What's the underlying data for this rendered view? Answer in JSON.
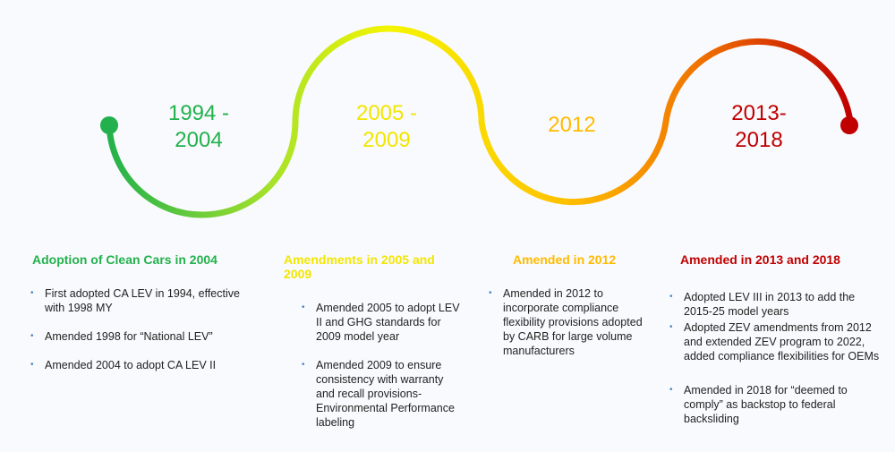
{
  "colors": {
    "green": "#22b14c",
    "yellow": "#f2e600",
    "orange": "#ffbb00",
    "red": "#c00000",
    "bullet": "#4a86c8"
  },
  "periods": [
    {
      "label_line1": "1994 -",
      "label_line2": "2004",
      "heading": "Adoption of Clean Cars in 2004",
      "color": "#22b14c",
      "bullets": [
        "First adopted CA LEV in 1994, effective with 1998 MY",
        "Amended 1998 for “National LEV”",
        "Amended 2004 to adopt CA LEV II"
      ]
    },
    {
      "label_line1": "2005 -",
      "label_line2": "2009",
      "heading": "Amendments in 2005 and 2009",
      "color": "#f2e600",
      "bullets": [
        "Amended 2005 to adopt LEV II and GHG standards for 2009 model year",
        "Amended 2009 to ensure consistency with warranty and recall provisions- Environmental Performance labeling"
      ]
    },
    {
      "label_line1": "2012",
      "label_line2": "",
      "heading": "Amended in  2012",
      "color": "#ffbb00",
      "bullets": [
        "Amended in 2012 to incorporate compliance flexibility provisions adopted by CARB for large volume manufacturers"
      ]
    },
    {
      "label_line1": "2013-",
      "label_line2": "2018",
      "heading": "Amended in 2013 and 2018",
      "color": "#c00000",
      "bullets": [
        "Adopted LEV III in 2013 to add the 2015-25 model years",
        "Adopted ZEV amendments from 2012 and extended ZEV program to 2022, added compliance flexibilities for OEMs",
        "Amended in 2018 for “deemed to comply” as backstop to federal backsliding"
      ]
    }
  ]
}
